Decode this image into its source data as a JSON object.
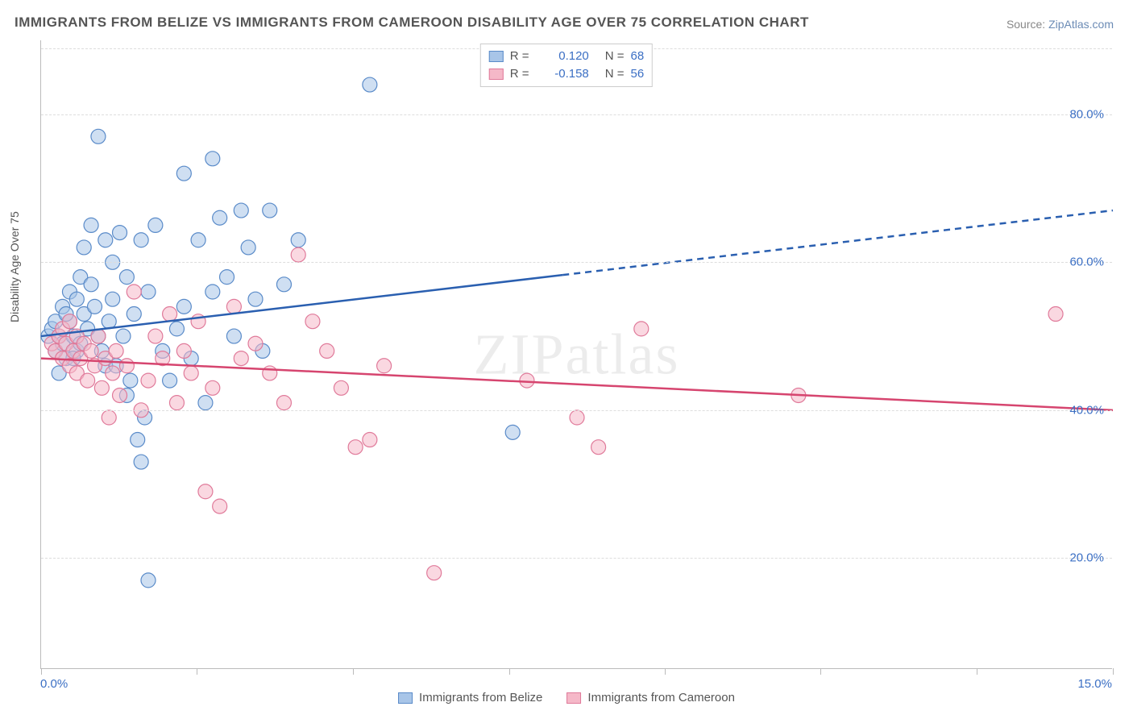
{
  "title": "IMMIGRANTS FROM BELIZE VS IMMIGRANTS FROM CAMEROON DISABILITY AGE OVER 75 CORRELATION CHART",
  "source_prefix": "Source: ",
  "source_link": "ZipAtlas.com",
  "y_axis_label": "Disability Age Over 75",
  "watermark_text": "ZIPatlas",
  "chart": {
    "type": "scatter",
    "xlim": [
      0,
      15
    ],
    "ylim": [
      5,
      90
    ],
    "x_ticks": [
      0,
      2.18,
      4.36,
      6.55,
      8.73,
      10.91,
      13.09,
      15
    ],
    "x_tick_labels": {
      "0": "0.0%",
      "15": "15.0%"
    },
    "y_gridlines": [
      20,
      40,
      60,
      80
    ],
    "y_tick_labels": [
      "20.0%",
      "40.0%",
      "60.0%",
      "80.0%"
    ],
    "background_color": "#ffffff",
    "grid_color": "#dddddd",
    "axis_color": "#bbbbbb",
    "marker_radius": 9,
    "marker_stroke_width": 1.2,
    "trend_line_width": 2.5,
    "series": [
      {
        "name": "Immigrants from Belize",
        "fill_color": "#a8c5e8",
        "fill_opacity": 0.55,
        "stroke_color": "#5a8bc9",
        "line_color": "#2a5fb0",
        "r_value": "0.120",
        "n_value": "68",
        "trend": {
          "x1": 0,
          "y1": 50,
          "x2": 15,
          "y2": 67,
          "solid_until_x": 7.3
        },
        "points": [
          [
            0.1,
            50
          ],
          [
            0.15,
            51
          ],
          [
            0.2,
            48
          ],
          [
            0.2,
            52
          ],
          [
            0.25,
            50
          ],
          [
            0.3,
            49
          ],
          [
            0.3,
            54
          ],
          [
            0.35,
            47
          ],
          [
            0.4,
            52
          ],
          [
            0.4,
            56
          ],
          [
            0.45,
            50
          ],
          [
            0.5,
            55
          ],
          [
            0.5,
            48
          ],
          [
            0.55,
            58
          ],
          [
            0.6,
            62
          ],
          [
            0.6,
            53
          ],
          [
            0.7,
            65
          ],
          [
            0.7,
            57
          ],
          [
            0.8,
            77
          ],
          [
            0.8,
            50
          ],
          [
            0.9,
            63
          ],
          [
            0.9,
            46
          ],
          [
            1.0,
            55
          ],
          [
            1.0,
            60
          ],
          [
            1.1,
            64
          ],
          [
            1.2,
            58
          ],
          [
            1.2,
            42
          ],
          [
            1.3,
            53
          ],
          [
            1.4,
            63
          ],
          [
            1.4,
            33
          ],
          [
            1.5,
            56
          ],
          [
            1.5,
            17
          ],
          [
            1.6,
            65
          ],
          [
            1.7,
            48
          ],
          [
            1.8,
            44
          ],
          [
            1.9,
            51
          ],
          [
            2.0,
            72
          ],
          [
            2.0,
            54
          ],
          [
            2.1,
            47
          ],
          [
            2.2,
            63
          ],
          [
            2.3,
            41
          ],
          [
            2.4,
            56
          ],
          [
            2.4,
            74
          ],
          [
            2.5,
            66
          ],
          [
            2.6,
            58
          ],
          [
            2.7,
            50
          ],
          [
            2.8,
            67
          ],
          [
            2.9,
            62
          ],
          [
            3.0,
            55
          ],
          [
            3.1,
            48
          ],
          [
            3.2,
            67
          ],
          [
            3.4,
            57
          ],
          [
            3.6,
            63
          ],
          [
            4.6,
            84
          ],
          [
            6.6,
            37
          ],
          [
            0.25,
            45
          ],
          [
            0.35,
            53
          ],
          [
            0.45,
            47
          ],
          [
            0.55,
            49
          ],
          [
            0.65,
            51
          ],
          [
            0.75,
            54
          ],
          [
            0.85,
            48
          ],
          [
            0.95,
            52
          ],
          [
            1.05,
            46
          ],
          [
            1.15,
            50
          ],
          [
            1.25,
            44
          ],
          [
            1.35,
            36
          ],
          [
            1.45,
            39
          ]
        ]
      },
      {
        "name": "Immigrants from Cameroon",
        "fill_color": "#f5b8c8",
        "fill_opacity": 0.55,
        "stroke_color": "#e07a9a",
        "line_color": "#d6456f",
        "r_value": "-0.158",
        "n_value": "56",
        "trend": {
          "x1": 0,
          "y1": 47,
          "x2": 15,
          "y2": 40,
          "solid_until_x": 15
        },
        "points": [
          [
            0.15,
            49
          ],
          [
            0.2,
            48
          ],
          [
            0.25,
            50
          ],
          [
            0.3,
            47
          ],
          [
            0.3,
            51
          ],
          [
            0.35,
            49
          ],
          [
            0.4,
            46
          ],
          [
            0.4,
            52
          ],
          [
            0.45,
            48
          ],
          [
            0.5,
            50
          ],
          [
            0.5,
            45
          ],
          [
            0.55,
            47
          ],
          [
            0.6,
            49
          ],
          [
            0.65,
            44
          ],
          [
            0.7,
            48
          ],
          [
            0.75,
            46
          ],
          [
            0.8,
            50
          ],
          [
            0.85,
            43
          ],
          [
            0.9,
            47
          ],
          [
            0.95,
            39
          ],
          [
            1.0,
            45
          ],
          [
            1.05,
            48
          ],
          [
            1.1,
            42
          ],
          [
            1.2,
            46
          ],
          [
            1.3,
            56
          ],
          [
            1.4,
            40
          ],
          [
            1.5,
            44
          ],
          [
            1.6,
            50
          ],
          [
            1.7,
            47
          ],
          [
            1.8,
            53
          ],
          [
            1.9,
            41
          ],
          [
            2.0,
            48
          ],
          [
            2.1,
            45
          ],
          [
            2.2,
            52
          ],
          [
            2.3,
            29
          ],
          [
            2.4,
            43
          ],
          [
            2.5,
            27
          ],
          [
            2.7,
            54
          ],
          [
            2.8,
            47
          ],
          [
            3.0,
            49
          ],
          [
            3.2,
            45
          ],
          [
            3.4,
            41
          ],
          [
            3.6,
            61
          ],
          [
            3.8,
            52
          ],
          [
            4.0,
            48
          ],
          [
            4.2,
            43
          ],
          [
            4.4,
            35
          ],
          [
            4.6,
            36
          ],
          [
            5.5,
            18
          ],
          [
            6.8,
            44
          ],
          [
            7.5,
            39
          ],
          [
            7.8,
            35
          ],
          [
            8.4,
            51
          ],
          [
            10.6,
            42
          ],
          [
            14.2,
            53
          ],
          [
            4.8,
            46
          ]
        ]
      }
    ]
  },
  "legend_top": {
    "r_label": "R  =",
    "n_label": "N  ="
  },
  "legend_bottom_labels": [
    "Immigrants from Belize",
    "Immigrants from Cameroon"
  ]
}
